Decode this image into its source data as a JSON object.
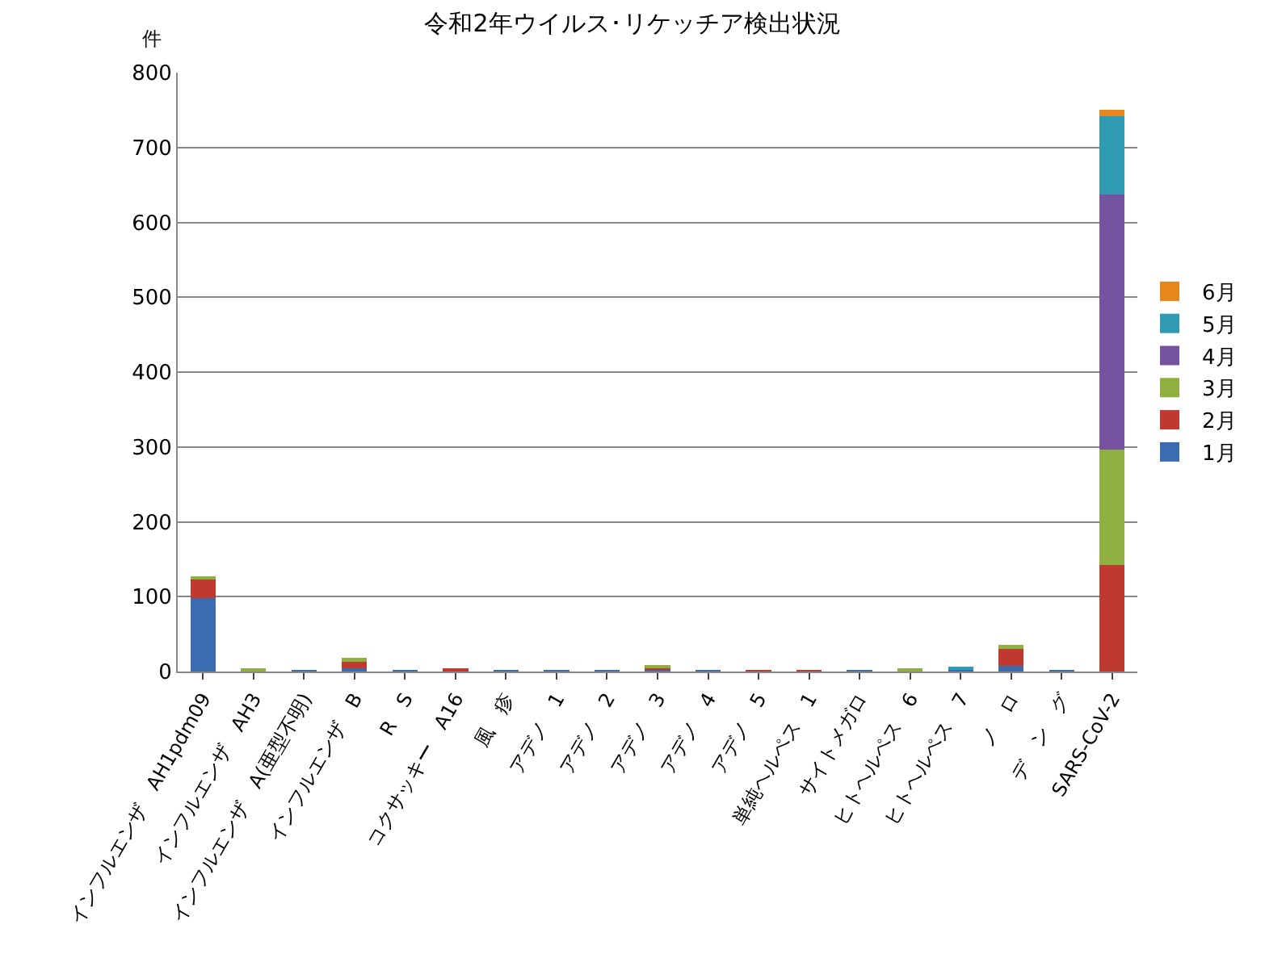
{
  "chart_data": {
    "type": "bar",
    "title": "令和2年ウイルス･リケッチア検出状況",
    "ylabel": "件",
    "stacked": true,
    "categories": [
      "インフルエンザ　AH1pdm09",
      "インフルエンザ　AH3",
      "インフルエンザ　A(亜型不明)",
      "インフルエンザ　B",
      "R　S",
      "コクサッキー　A16",
      "風　疹",
      "アデノ　1",
      "アデノ　2",
      "アデノ　3",
      "アデノ　4",
      "アデノ　5",
      "単純ヘルペス　1",
      "サイトメガロ",
      "ヒトヘルペス　6",
      "ヒトヘルペス　7",
      "ノ　ロ",
      "デ　ン　グ",
      "SARS-CoV-2"
    ],
    "series": [
      {
        "name": "1月",
        "color": "#3a6db0",
        "values": [
          98,
          1,
          1,
          4,
          1,
          2,
          1,
          1,
          1,
          3,
          1,
          0,
          0,
          1,
          1,
          4,
          8,
          1,
          0
        ]
      },
      {
        "name": "2月",
        "color": "#c0392f",
        "values": [
          25,
          0,
          0,
          10,
          0,
          2,
          0,
          0,
          0,
          2,
          0,
          1,
          1,
          0,
          1,
          0,
          22,
          0,
          142
        ]
      },
      {
        "name": "3月",
        "color": "#8db040",
        "values": [
          3,
          2,
          0,
          4,
          0,
          0,
          0,
          0,
          0,
          3,
          0,
          0,
          0,
          0,
          1,
          0,
          6,
          0,
          155
        ]
      },
      {
        "name": "4月",
        "color": "#7553a0",
        "values": [
          0,
          0,
          0,
          0,
          0,
          0,
          0,
          0,
          0,
          0,
          0,
          0,
          0,
          0,
          0,
          0,
          0,
          0,
          340
        ]
      },
      {
        "name": "5月",
        "color": "#2f9ab4",
        "values": [
          0,
          0,
          0,
          0,
          0,
          0,
          0,
          0,
          0,
          0,
          0,
          0,
          0,
          0,
          0,
          2,
          0,
          0,
          105
        ]
      },
      {
        "name": "6月",
        "color": "#e8861e",
        "values": [
          0,
          0,
          0,
          0,
          0,
          0,
          0,
          0,
          0,
          0,
          0,
          0,
          0,
          0,
          0,
          0,
          0,
          0,
          8
        ]
      }
    ],
    "ylim": [
      0,
      800
    ],
    "yticks": [
      0,
      100,
      200,
      300,
      400,
      500,
      600,
      700,
      800
    ],
    "grid": "y",
    "legend": "right"
  }
}
